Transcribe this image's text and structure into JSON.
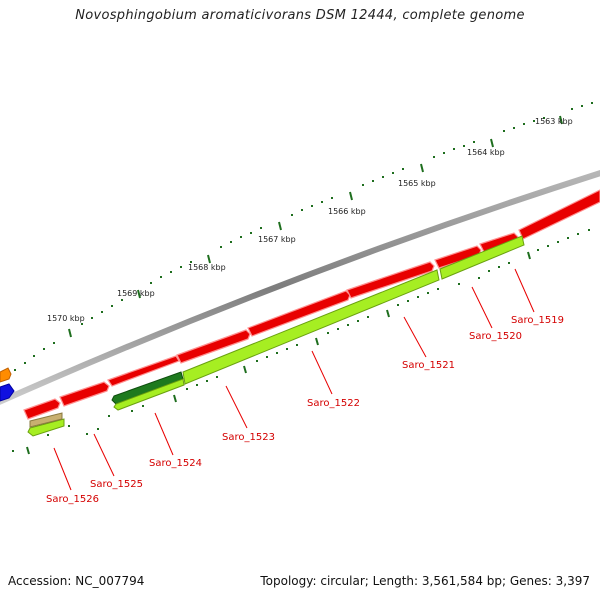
{
  "title": "Novosphingobium aromaticivorans DSM 12444, complete genome",
  "footer": {
    "accession": "Accession: NC_007794",
    "topology": "Topology: circular; Length: 3,561,584 bp; Genes: 3,397"
  },
  "scale_labels": [
    "1563 kbp",
    "1564 kbp",
    "1565 kbp",
    "1566 kbp",
    "1567 kbp",
    "1568 kbp",
    "1569 kbp",
    "1570 kbp"
  ],
  "gene_labels": [
    "Saro_1519",
    "Saro_1520",
    "Saro_1521",
    "Saro_1522",
    "Saro_1523",
    "Saro_1524",
    "Saro_1525",
    "Saro_1526"
  ],
  "colors": {
    "backbone": "#8a8a8a",
    "gene_red": "#e80000",
    "gene_green_light": "#a6ee22",
    "gene_green_dark": "#1e7a1e",
    "gene_orange": "#ff8c00",
    "gene_blue": "#1010e0",
    "gene_tan": "#c8b070",
    "tick_green": "#1e6e1e",
    "label_red": "#d40000"
  }
}
